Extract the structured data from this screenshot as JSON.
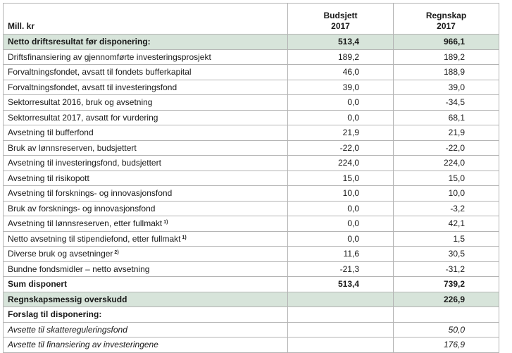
{
  "header": {
    "unit_label": "Mill. kr",
    "col1_line1": "Budsjett",
    "col1_line2": "2017",
    "col2_line1": "Regnskap",
    "col2_line2": "2017"
  },
  "rows": [
    {
      "label": "Netto driftsresultat før disponering:",
      "sup": "",
      "budget": "513,4",
      "actual": "966,1",
      "style": "hl"
    },
    {
      "label": "Driftsfinansiering av gjennomførte investeringsprosjekt",
      "sup": "",
      "budget": "189,2",
      "actual": "189,2",
      "style": ""
    },
    {
      "label": "Forvaltningsfondet, avsatt til fondets bufferkapital",
      "sup": "",
      "budget": "46,0",
      "actual": "188,9",
      "style": ""
    },
    {
      "label": "Forvaltningsfondet, avsatt til investeringsfond",
      "sup": "",
      "budget": "39,0",
      "actual": "39,0",
      "style": ""
    },
    {
      "label": "Sektorresultat 2016, bruk og avsetning",
      "sup": "",
      "budget": "0,0",
      "actual": "-34,5",
      "style": ""
    },
    {
      "label": "Sektorresultat 2017, avsatt for vurdering",
      "sup": "",
      "budget": "0,0",
      "actual": "68,1",
      "style": ""
    },
    {
      "label": "Avsetning til bufferfond",
      "sup": "",
      "budget": "21,9",
      "actual": "21,9",
      "style": ""
    },
    {
      "label": "Bruk av lønnsreserven, budsjettert",
      "sup": "",
      "budget": "-22,0",
      "actual": "-22,0",
      "style": ""
    },
    {
      "label": "Avsetning til investeringsfond, budsjettert",
      "sup": "",
      "budget": "224,0",
      "actual": "224,0",
      "style": ""
    },
    {
      "label": "Avsetning til risikopott",
      "sup": "",
      "budget": "15,0",
      "actual": "15,0",
      "style": ""
    },
    {
      "label": "Avsetning til forsknings- og innovasjonsfond",
      "sup": "",
      "budget": "10,0",
      "actual": "10,0",
      "style": ""
    },
    {
      "label": "Bruk av forsknings- og innovasjonsfond",
      "sup": "",
      "budget": "0,0",
      "actual": "-3,2",
      "style": ""
    },
    {
      "label": "Avsetning til lønnsreserven, etter fullmakt",
      "sup": "1)",
      "budget": "0,0",
      "actual": "42,1",
      "style": ""
    },
    {
      "label": "Netto avsetning til stipendiefond, etter fullmakt",
      "sup": "1)",
      "budget": "0,0",
      "actual": "1,5",
      "style": ""
    },
    {
      "label": "Diverse bruk og avsetninger",
      "sup": "2)",
      "budget": "11,6",
      "actual": "30,5",
      "style": ""
    },
    {
      "label": "Bundne fondsmidler – netto avsetning",
      "sup": "",
      "budget": "-21,3",
      "actual": "-31,2",
      "style": ""
    },
    {
      "label": "Sum disponert",
      "sup": "",
      "budget": "513,4",
      "actual": "739,2",
      "style": "bold"
    },
    {
      "label": "Regnskapsmessig overskudd",
      "sup": "",
      "budget": "",
      "actual": "226,9",
      "style": "hl"
    },
    {
      "label": "Forslag til disponering:",
      "sup": "",
      "budget": "",
      "actual": "",
      "style": "bold"
    },
    {
      "label": "Avsette til skattereguleringsfond",
      "sup": "",
      "budget": "",
      "actual": "50,0",
      "style": "italic"
    },
    {
      "label": "Avsette til finansiering av investeringene",
      "sup": "",
      "budget": "",
      "actual": "176,9",
      "style": "italic"
    }
  ],
  "colors": {
    "highlight_row": "#d7e4da",
    "border": "#b4b4b4"
  }
}
